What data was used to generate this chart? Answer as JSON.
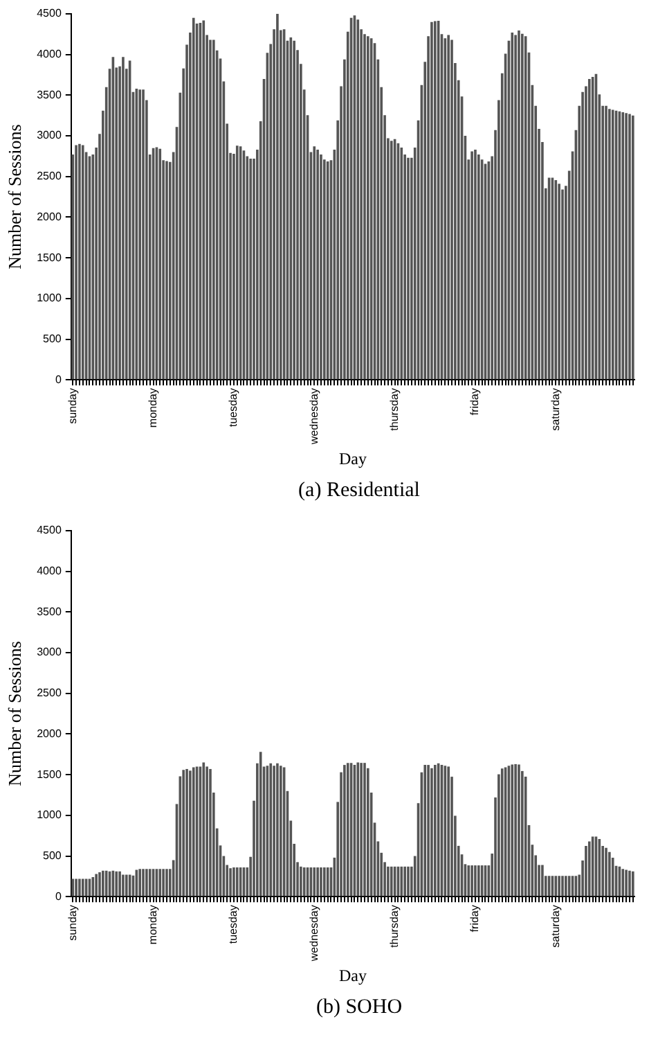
{
  "chart_data": [
    {
      "type": "bar",
      "xlabel": "Day",
      "ylabel": "Number of Sessions",
      "annotations": [
        "(a) Residential"
      ],
      "grid": false,
      "color": "#555555",
      "ylim": [
        0,
        4500
      ],
      "yticks": [
        0,
        500,
        1000,
        1500,
        2000,
        2500,
        3000,
        3500,
        4000,
        4500
      ],
      "categories": [
        "sunday",
        null,
        null,
        null,
        null,
        null,
        null,
        null,
        null,
        null,
        null,
        null,
        null,
        null,
        null,
        null,
        null,
        null,
        null,
        null,
        null,
        null,
        null,
        null,
        "monday",
        null,
        null,
        null,
        null,
        null,
        null,
        null,
        null,
        null,
        null,
        null,
        null,
        null,
        null,
        null,
        null,
        null,
        null,
        null,
        null,
        null,
        null,
        null,
        "tuesday",
        null,
        null,
        null,
        null,
        null,
        null,
        null,
        null,
        null,
        null,
        null,
        null,
        null,
        null,
        null,
        null,
        null,
        null,
        null,
        null,
        null,
        null,
        null,
        "wednesday",
        null,
        null,
        null,
        null,
        null,
        null,
        null,
        null,
        null,
        null,
        null,
        null,
        null,
        null,
        null,
        null,
        null,
        null,
        null,
        null,
        null,
        null,
        null,
        "thursday",
        null,
        null,
        null,
        null,
        null,
        null,
        null,
        null,
        null,
        null,
        null,
        null,
        null,
        null,
        null,
        null,
        null,
        null,
        null,
        null,
        null,
        null,
        null,
        "friday",
        null,
        null,
        null,
        null,
        null,
        null,
        null,
        null,
        null,
        null,
        null,
        null,
        null,
        null,
        null,
        null,
        null,
        null,
        null,
        null,
        null,
        null,
        null,
        "saturday",
        null,
        null,
        null,
        null,
        null,
        null,
        null,
        null,
        null,
        null,
        null,
        null,
        null,
        null,
        null,
        null,
        null,
        null,
        null,
        null,
        null,
        null,
        null
      ],
      "values": [
        2770,
        2885,
        2900,
        2885,
        2800,
        2750,
        2770,
        2855,
        3025,
        3310,
        3600,
        3825,
        3970,
        3840,
        3855,
        3970,
        3825,
        3925,
        3540,
        3580,
        3570,
        3570,
        3440,
        2770,
        2850,
        2860,
        2840,
        2700,
        2690,
        2680,
        2800,
        3110,
        3530,
        3830,
        4120,
        4270,
        4450,
        4380,
        4390,
        4420,
        4240,
        4180,
        4180,
        4050,
        3950,
        3670,
        3150,
        2790,
        2780,
        2880,
        2870,
        2820,
        2750,
        2720,
        2720,
        2830,
        3180,
        3700,
        4020,
        4130,
        4310,
        4500,
        4300,
        4310,
        4170,
        4210,
        4170,
        4055,
        3885,
        3570,
        3255,
        2800,
        2870,
        2830,
        2770,
        2710,
        2685,
        2700,
        2830,
        3190,
        3610,
        3940,
        4280,
        4450,
        4480,
        4430,
        4310,
        4250,
        4225,
        4200,
        4140,
        3940,
        3600,
        3255,
        2970,
        2940,
        2960,
        2910,
        2855,
        2770,
        2730,
        2730,
        2855,
        3190,
        3625,
        3910,
        4225,
        4400,
        4410,
        4415,
        4250,
        4200,
        4240,
        4180,
        3895,
        3685,
        3485,
        3000,
        2710,
        2810,
        2830,
        2770,
        2710,
        2655,
        2685,
        2750,
        3070,
        3440,
        3770,
        4010,
        4170,
        4270,
        4240,
        4295,
        4255,
        4225,
        4025,
        3625,
        3370,
        3085,
        2925,
        2355,
        2485,
        2485,
        2455,
        2410,
        2340,
        2385,
        2570,
        2810,
        3070,
        3370,
        3540,
        3610,
        3700,
        3725,
        3760,
        3510,
        3370,
        3370,
        3330,
        3320,
        3310,
        3300,
        3290,
        3280,
        3270,
        3250
      ]
    },
    {
      "type": "bar",
      "xlabel": "Day",
      "ylabel": "Number of Sessions",
      "annotations": [
        "(b) SOHO"
      ],
      "grid": false,
      "color": "#555555",
      "ylim": [
        0,
        4500
      ],
      "yticks": [
        0,
        500,
        1000,
        1500,
        2000,
        2500,
        3000,
        3500,
        4000,
        4500
      ],
      "categories": [
        "sunday",
        null,
        null,
        null,
        null,
        null,
        null,
        null,
        null,
        null,
        null,
        null,
        null,
        null,
        null,
        null,
        null,
        null,
        null,
        null,
        null,
        null,
        null,
        null,
        "monday",
        null,
        null,
        null,
        null,
        null,
        null,
        null,
        null,
        null,
        null,
        null,
        null,
        null,
        null,
        null,
        null,
        null,
        null,
        null,
        null,
        null,
        null,
        null,
        "tuesday",
        null,
        null,
        null,
        null,
        null,
        null,
        null,
        null,
        null,
        null,
        null,
        null,
        null,
        null,
        null,
        null,
        null,
        null,
        null,
        null,
        null,
        null,
        null,
        "wednesday",
        null,
        null,
        null,
        null,
        null,
        null,
        null,
        null,
        null,
        null,
        null,
        null,
        null,
        null,
        null,
        null,
        null,
        null,
        null,
        null,
        null,
        null,
        null,
        "thursday",
        null,
        null,
        null,
        null,
        null,
        null,
        null,
        null,
        null,
        null,
        null,
        null,
        null,
        null,
        null,
        null,
        null,
        null,
        null,
        null,
        null,
        null,
        null,
        "friday",
        null,
        null,
        null,
        null,
        null,
        null,
        null,
        null,
        null,
        null,
        null,
        null,
        null,
        null,
        null,
        null,
        null,
        null,
        null,
        null,
        null,
        null,
        null,
        "saturday",
        null,
        null,
        null,
        null,
        null,
        null,
        null,
        null,
        null,
        null,
        null,
        null,
        null,
        null,
        null,
        null,
        null,
        null,
        null,
        null,
        null,
        null,
        null
      ],
      "values": [
        220,
        220,
        220,
        220,
        220,
        220,
        240,
        280,
        300,
        320,
        320,
        310,
        320,
        310,
        310,
        270,
        270,
        270,
        260,
        330,
        340,
        340,
        340,
        340,
        340,
        340,
        340,
        340,
        340,
        340,
        450,
        1140,
        1480,
        1560,
        1570,
        1550,
        1590,
        1600,
        1600,
        1650,
        1600,
        1570,
        1280,
        840,
        630,
        500,
        390,
        350,
        360,
        360,
        360,
        360,
        360,
        490,
        1180,
        1640,
        1780,
        1600,
        1610,
        1640,
        1610,
        1640,
        1610,
        1590,
        1300,
        935,
        650,
        425,
        370,
        360,
        360,
        360,
        360,
        360,
        360,
        360,
        360,
        360,
        480,
        1165,
        1530,
        1620,
        1645,
        1645,
        1620,
        1650,
        1645,
        1645,
        1580,
        1280,
        910,
        680,
        540,
        425,
        370,
        370,
        370,
        370,
        370,
        370,
        370,
        370,
        500,
        1150,
        1530,
        1620,
        1620,
        1580,
        1620,
        1640,
        1620,
        1610,
        1600,
        1475,
        995,
        625,
        520,
        400,
        385,
        385,
        385,
        385,
        385,
        385,
        385,
        530,
        1220,
        1505,
        1575,
        1590,
        1610,
        1625,
        1630,
        1625,
        1545,
        1475,
        880,
        640,
        510,
        390,
        390,
        255,
        255,
        255,
        255,
        255,
        255,
        255,
        255,
        255,
        255,
        270,
        445,
        625,
        680,
        740,
        740,
        710,
        625,
        600,
        550,
        480,
        380,
        370,
        340,
        330,
        320,
        310
      ]
    }
  ]
}
